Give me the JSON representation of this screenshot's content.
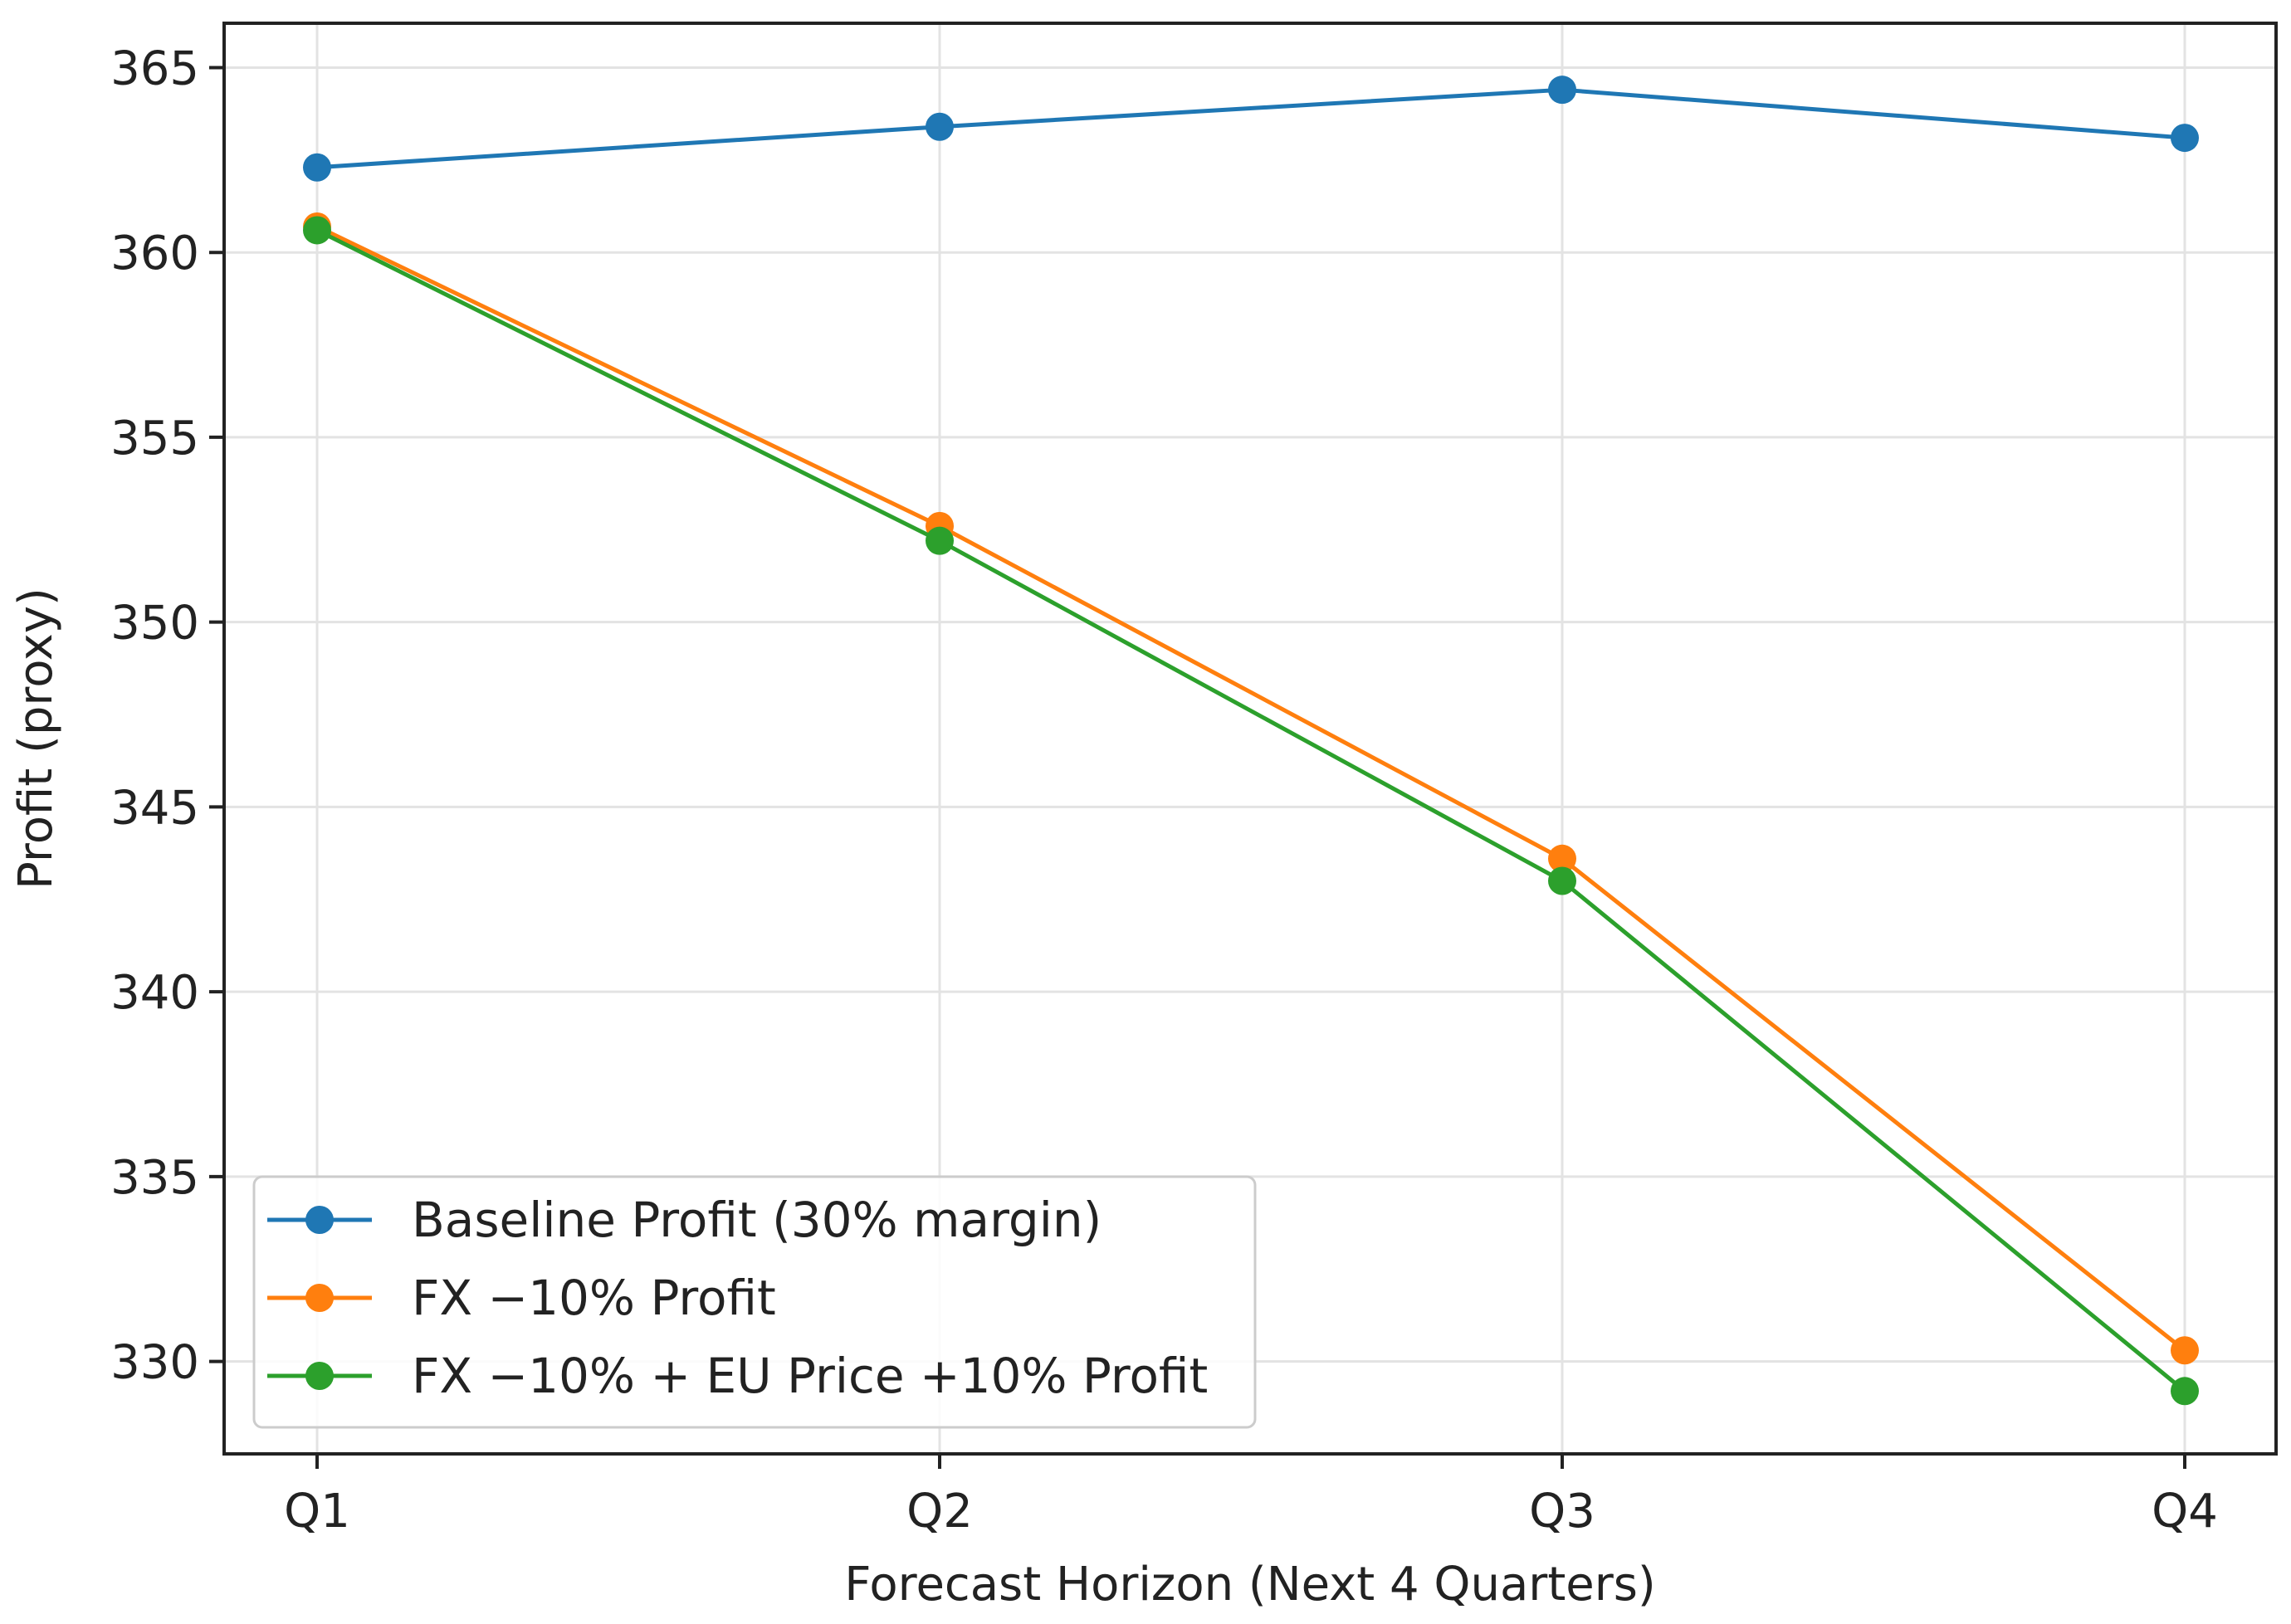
{
  "chart_data": {
    "type": "line",
    "title": "",
    "xlabel": "Forecast Horizon (Next 4 Quarters)",
    "ylabel": "Profit (proxy)",
    "categories": [
      "Q1",
      "Q2",
      "Q3",
      "Q4"
    ],
    "ylim": [
      327.5,
      366.2
    ],
    "yticks": [
      330,
      335,
      340,
      345,
      350,
      355,
      360,
      365
    ],
    "grid": true,
    "legend_position": "lower-left",
    "series": [
      {
        "name": "Baseline Profit (30% margin)",
        "color": "#1f77b4",
        "values": [
          362.3,
          363.4,
          364.4,
          363.1
        ]
      },
      {
        "name": "FX −10% Profit",
        "color": "#ff7f0e",
        "values": [
          360.7,
          352.6,
          343.6,
          330.3
        ]
      },
      {
        "name": "FX −10% + EU Price +10% Profit",
        "color": "#2ca02c",
        "values": [
          360.6,
          352.2,
          343.0,
          329.2
        ]
      }
    ]
  }
}
